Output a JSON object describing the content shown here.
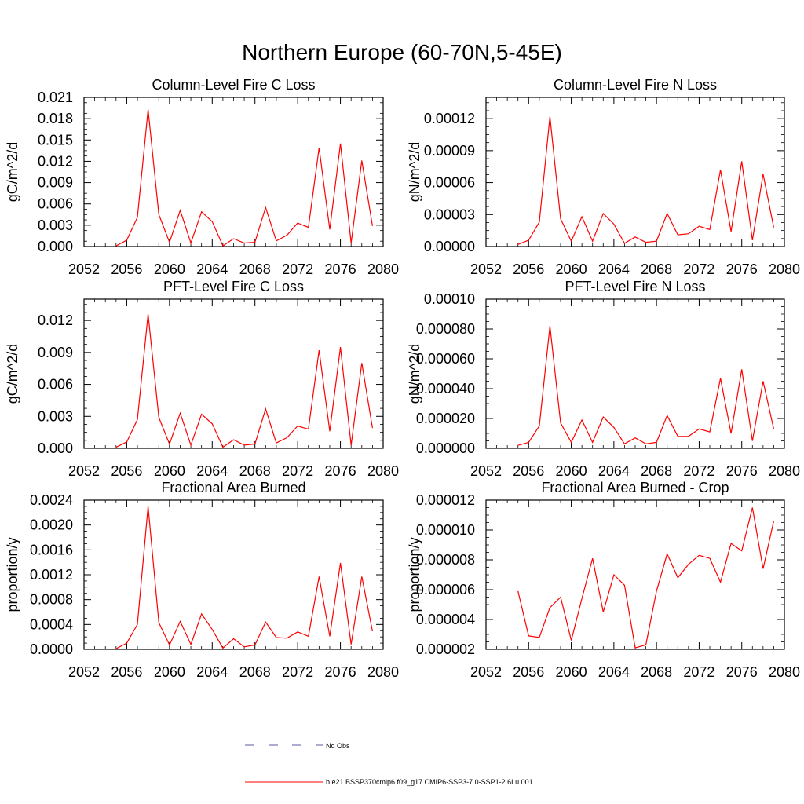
{
  "title": "Northern Europe (60-70N,5-45E)",
  "colors": {
    "model": "#ff0000",
    "obs": "#5a5aa0",
    "axis": "#000000"
  },
  "legend": {
    "obs_label": "No Obs",
    "model_label": "b.e21.BSSP370cmip6.f09_g17.CMIP6-SSP3-7.0-SSP1-2.6Lu.001"
  },
  "chart_data": [
    {
      "type": "line",
      "title": "Column-Level Fire C Loss",
      "ylabel": "gC/m^2/d",
      "xlim": [
        2052,
        2080
      ],
      "xticks": [
        "2052",
        "2056",
        "2060",
        "2064",
        "2068",
        "2072",
        "2076",
        "2080"
      ],
      "ylim": [
        0,
        0.021
      ],
      "yticks": [
        "0.000",
        "0.003",
        "0.006",
        "0.009",
        "0.012",
        "0.015",
        "0.018",
        "0.021"
      ],
      "x": [
        2055,
        2056,
        2057,
        2058,
        2059,
        2060,
        2061,
        2062,
        2063,
        2064,
        2065,
        2066,
        2067,
        2068,
        2069,
        2070,
        2071,
        2072,
        2073,
        2074,
        2075,
        2076,
        2077,
        2078,
        2079
      ],
      "series": [
        {
          "values": [
            0.0001,
            0.0009,
            0.0041,
            0.0193,
            0.0045,
            0.0006,
            0.0051,
            0.0005,
            0.0049,
            0.0035,
            0.0001,
            0.0011,
            0.0005,
            0.0006,
            0.0055,
            0.0008,
            0.0016,
            0.0033,
            0.0027,
            0.0139,
            0.0024,
            0.0145,
            0.0005,
            0.0121,
            0.0029
          ]
        }
      ]
    },
    {
      "type": "line",
      "title": "Column-Level Fire N Loss",
      "ylabel": "gN/m^2/d",
      "xlim": [
        2052,
        2080
      ],
      "xticks": [
        "2052",
        "2056",
        "2060",
        "2064",
        "2068",
        "2072",
        "2076",
        "2080"
      ],
      "ylim": [
        0,
        0.00014
      ],
      "yticks": [
        "0.00000",
        "0.00003",
        "0.00006",
        "0.00009",
        "0.00012"
      ],
      "x": [
        2055,
        2056,
        2057,
        2058,
        2059,
        2060,
        2061,
        2062,
        2063,
        2064,
        2065,
        2066,
        2067,
        2068,
        2069,
        2070,
        2071,
        2072,
        2073,
        2074,
        2075,
        2076,
        2077,
        2078,
        2079
      ],
      "series": [
        {
          "values": [
            2e-06,
            6e-06,
            2.3e-05,
            0.000122,
            2.6e-05,
            5e-06,
            2.8e-05,
            5e-06,
            3.1e-05,
            2.1e-05,
            3e-06,
            9e-06,
            4e-06,
            5e-06,
            3.1e-05,
            1.1e-05,
            1.2e-05,
            1.9e-05,
            1.6e-05,
            7.2e-05,
            1.4e-05,
            8e-05,
            6e-06,
            6.8e-05,
            1.8e-05
          ]
        }
      ]
    },
    {
      "type": "line",
      "title": "PFT-Level Fire C Loss",
      "ylabel": "gC/m^2/d",
      "xlim": [
        2052,
        2080
      ],
      "xticks": [
        "2052",
        "2056",
        "2060",
        "2064",
        "2068",
        "2072",
        "2076",
        "2080"
      ],
      "ylim": [
        0,
        0.014
      ],
      "yticks": [
        "0.000",
        "0.003",
        "0.006",
        "0.009",
        "0.012"
      ],
      "x": [
        2055,
        2056,
        2057,
        2058,
        2059,
        2060,
        2061,
        2062,
        2063,
        2064,
        2065,
        2066,
        2067,
        2068,
        2069,
        2070,
        2071,
        2072,
        2073,
        2074,
        2075,
        2076,
        2077,
        2078,
        2079
      ],
      "series": [
        {
          "values": [
            0.0001,
            0.0006,
            0.0027,
            0.0126,
            0.0029,
            0.0004,
            0.0033,
            0.0003,
            0.0032,
            0.0023,
            0.0001,
            0.0008,
            0.0003,
            0.0004,
            0.0037,
            0.0005,
            0.001,
            0.0021,
            0.0018,
            0.0092,
            0.0016,
            0.0095,
            0.0003,
            0.008,
            0.0019
          ]
        }
      ]
    },
    {
      "type": "line",
      "title": "PFT-Level Fire N Loss",
      "ylabel": "gN/m^2/d",
      "xlim": [
        2052,
        2080
      ],
      "xticks": [
        "2052",
        "2056",
        "2060",
        "2064",
        "2068",
        "2072",
        "2076",
        "2080"
      ],
      "ylim": [
        0,
        0.0001
      ],
      "yticks": [
        "0.000000",
        "0.000020",
        "0.000040",
        "0.000060",
        "0.000080",
        "0.00010"
      ],
      "x": [
        2055,
        2056,
        2057,
        2058,
        2059,
        2060,
        2061,
        2062,
        2063,
        2064,
        2065,
        2066,
        2067,
        2068,
        2069,
        2070,
        2071,
        2072,
        2073,
        2074,
        2075,
        2076,
        2077,
        2078,
        2079
      ],
      "series": [
        {
          "values": [
            2e-06,
            4e-06,
            1.5e-05,
            8.2e-05,
            1.7e-05,
            4e-06,
            1.9e-05,
            4e-06,
            2.1e-05,
            1.4e-05,
            3e-06,
            7e-06,
            3e-06,
            4e-06,
            2.2e-05,
            8e-06,
            8e-06,
            1.3e-05,
            1.1e-05,
            4.7e-05,
            1e-05,
            5.3e-05,
            5e-06,
            4.5e-05,
            1.3e-05
          ]
        }
      ]
    },
    {
      "type": "line",
      "title": "Fractional Area Burned",
      "ylabel": "proportion/y",
      "xlim": [
        2052,
        2080
      ],
      "xticks": [
        "2052",
        "2056",
        "2060",
        "2064",
        "2068",
        "2072",
        "2076",
        "2080"
      ],
      "ylim": [
        0,
        0.0024
      ],
      "yticks": [
        "0.0000",
        "0.0004",
        "0.0008",
        "0.0012",
        "0.0016",
        "0.0020",
        "0.0024"
      ],
      "x": [
        2055,
        2056,
        2057,
        2058,
        2059,
        2060,
        2061,
        2062,
        2063,
        2064,
        2065,
        2066,
        2067,
        2068,
        2069,
        2070,
        2071,
        2072,
        2073,
        2074,
        2075,
        2076,
        2077,
        2078,
        2079
      ],
      "series": [
        {
          "values": [
            1e-05,
            0.0001,
            0.0004,
            0.0023,
            0.00043,
            7e-05,
            0.00045,
            8e-05,
            0.00057,
            0.00032,
            2e-05,
            0.00017,
            4e-05,
            7e-05,
            0.00044,
            0.00019,
            0.00018,
            0.00028,
            0.00021,
            0.00117,
            0.00021,
            0.00139,
            8e-05,
            0.00117,
            0.00029
          ]
        }
      ]
    },
    {
      "type": "line",
      "title": "Fractional Area Burned - Crop",
      "ylabel": "proportion/y",
      "xlim": [
        2052,
        2080
      ],
      "xticks": [
        "2052",
        "2056",
        "2060",
        "2064",
        "2068",
        "2072",
        "2076",
        "2080"
      ],
      "ylim": [
        2e-06,
        1.2e-05
      ],
      "yticks": [
        "0.000002",
        "0.000004",
        "0.000006",
        "0.000008",
        "0.000010",
        "0.000012"
      ],
      "x": [
        2055,
        2056,
        2057,
        2058,
        2059,
        2060,
        2061,
        2062,
        2063,
        2064,
        2065,
        2066,
        2067,
        2068,
        2069,
        2070,
        2071,
        2072,
        2073,
        2074,
        2075,
        2076,
        2077,
        2078,
        2079
      ],
      "series": [
        {
          "values": [
            5.9e-06,
            2.9e-06,
            2.8e-06,
            4.8e-06,
            5.5e-06,
            2.6e-06,
            5.4e-06,
            8.1e-06,
            4.5e-06,
            7e-06,
            6.3e-06,
            2.1e-06,
            2.3e-06,
            5.9e-06,
            8.4e-06,
            6.8e-06,
            7.7e-06,
            8.3e-06,
            8.1e-06,
            6.5e-06,
            9.1e-06,
            8.6e-06,
            1.15e-05,
            7.4e-06,
            1.06e-05
          ]
        }
      ]
    }
  ]
}
